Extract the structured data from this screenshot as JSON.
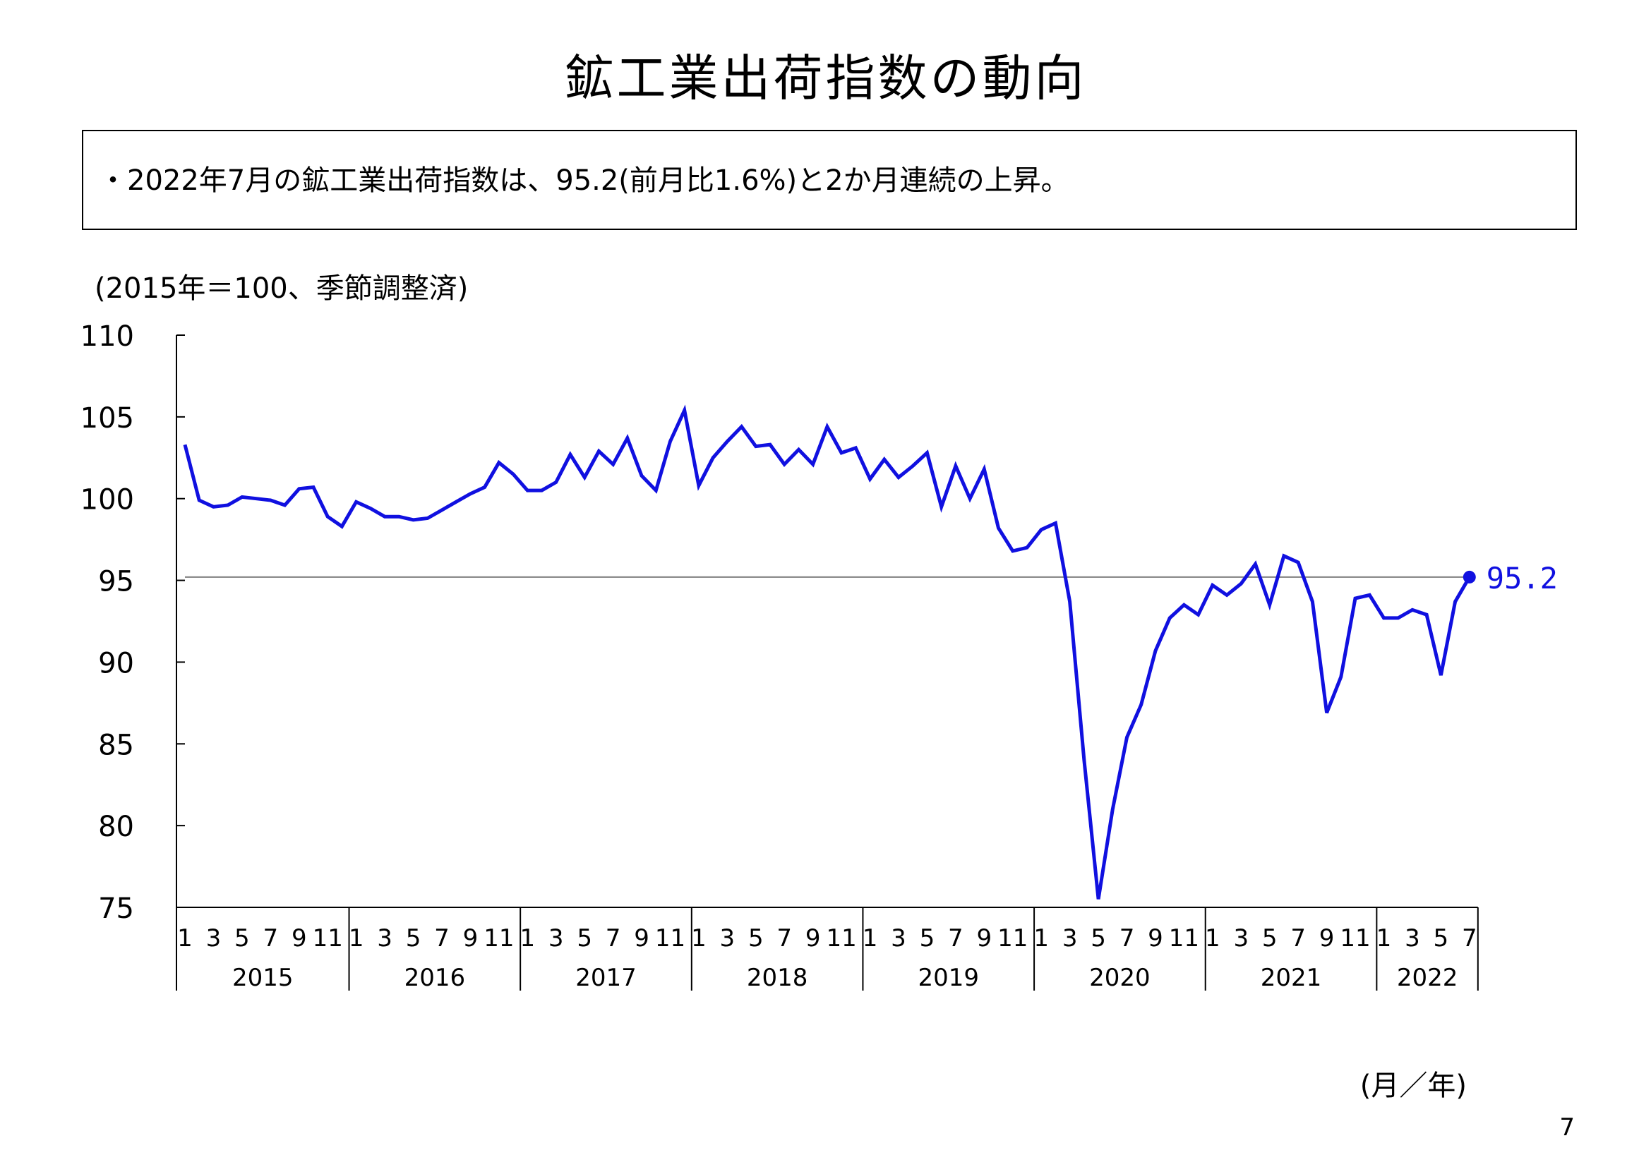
{
  "page": {
    "title": "鉱工業出荷指数の動向",
    "summary": "・2022年7月の鉱工業出荷指数は、95.2(前月比1.6%)と2か月連続の上昇。",
    "page_number": "7"
  },
  "chart_data": {
    "type": "line",
    "title": "",
    "ylabel": "(2015年＝100、季節調整済)",
    "xlabel": "(月／年)",
    "ylim": [
      75,
      110
    ],
    "yticks": [
      75,
      80,
      85,
      90,
      95,
      100,
      105,
      110
    ],
    "grid": false,
    "month_ticks": [
      "1",
      "3",
      "5",
      "7",
      "9",
      "11"
    ],
    "years": [
      "2015",
      "2016",
      "2017",
      "2018",
      "2019",
      "2020",
      "2021",
      "2022"
    ],
    "last_value_label": "95.2",
    "reference_line": 95.2,
    "colors": {
      "line": "#1010e0",
      "reference": "#808080",
      "label": "#1010e0"
    },
    "series": [
      {
        "x": [
          "2015-01",
          "2015-02",
          "2015-03",
          "2015-04",
          "2015-05",
          "2015-06",
          "2015-07",
          "2015-08",
          "2015-09",
          "2015-10",
          "2015-11",
          "2015-12",
          "2016-01",
          "2016-02",
          "2016-03",
          "2016-04",
          "2016-05",
          "2016-06",
          "2016-07",
          "2016-08",
          "2016-09",
          "2016-10",
          "2016-11",
          "2016-12",
          "2017-01",
          "2017-02",
          "2017-03",
          "2017-04",
          "2017-05",
          "2017-06",
          "2017-07",
          "2017-08",
          "2017-09",
          "2017-10",
          "2017-11",
          "2017-12",
          "2018-01",
          "2018-02",
          "2018-03",
          "2018-04",
          "2018-05",
          "2018-06",
          "2018-07",
          "2018-08",
          "2018-09",
          "2018-10",
          "2018-11",
          "2018-12",
          "2019-01",
          "2019-02",
          "2019-03",
          "2019-04",
          "2019-05",
          "2019-06",
          "2019-07",
          "2019-08",
          "2019-09",
          "2019-10",
          "2019-11",
          "2019-12",
          "2020-01",
          "2020-02",
          "2020-03",
          "2020-04",
          "2020-05",
          "2020-06",
          "2020-07",
          "2020-08",
          "2020-09",
          "2020-10",
          "2020-11",
          "2020-12",
          "2021-01",
          "2021-02",
          "2021-03",
          "2021-04",
          "2021-05",
          "2021-06",
          "2021-07",
          "2021-08",
          "2021-09",
          "2021-10",
          "2021-11",
          "2021-12",
          "2022-01",
          "2022-02",
          "2022-03",
          "2022-04",
          "2022-05",
          "2022-06",
          "2022-07"
        ],
        "values": [
          103.3,
          99.9,
          99.5,
          99.6,
          100.1,
          100.0,
          99.9,
          99.6,
          100.6,
          100.7,
          98.9,
          98.3,
          99.8,
          99.4,
          98.9,
          98.9,
          98.7,
          98.8,
          99.3,
          99.8,
          100.3,
          100.7,
          102.2,
          101.5,
          100.5,
          100.5,
          101.0,
          102.7,
          101.3,
          102.9,
          102.1,
          103.7,
          101.4,
          100.5,
          103.5,
          105.4,
          100.8,
          102.5,
          103.5,
          104.4,
          103.2,
          103.3,
          102.1,
          103.0,
          102.1,
          104.4,
          102.8,
          103.1,
          101.2,
          102.4,
          101.3,
          102.0,
          102.8,
          99.5,
          102.0,
          100.0,
          101.8,
          98.2,
          96.8,
          97.0,
          98.1,
          98.5,
          93.7,
          84.0,
          75.5,
          81.0,
          85.4,
          87.4,
          90.7,
          92.7,
          93.5,
          92.9,
          94.7,
          94.1,
          94.8,
          96.0,
          93.5,
          96.5,
          96.1,
          93.7,
          86.9,
          89.1,
          93.9,
          94.1,
          92.7,
          92.7,
          93.2,
          92.9,
          89.2,
          93.7,
          95.2
        ]
      }
    ]
  }
}
